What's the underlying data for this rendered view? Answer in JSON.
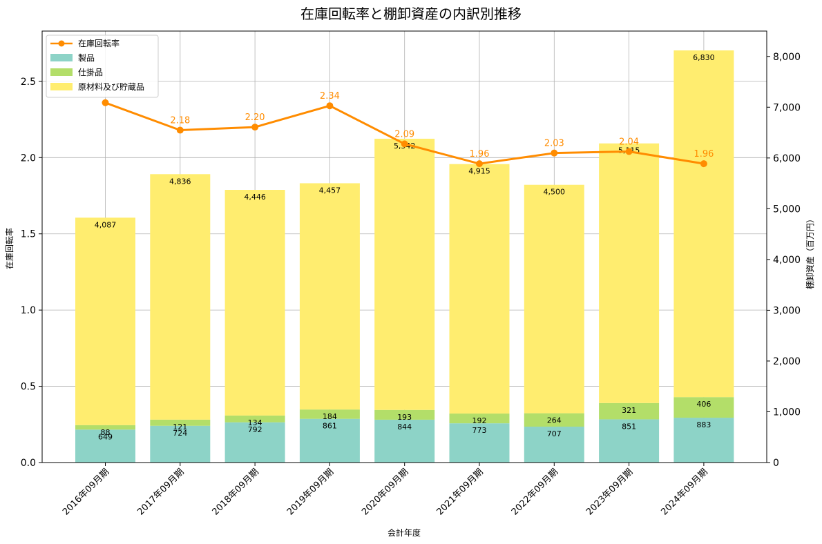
{
  "chart_data": {
    "type": "bar",
    "title": "在庫回転率と棚卸資産の内訳別推移",
    "xlabel": "会計年度",
    "ylabel_left": "在庫回転率",
    "ylabel_right": "棚卸資産（百万円）",
    "categories": [
      "2016年09月期",
      "2017年09月期",
      "2018年09月期",
      "2019年09月期",
      "2020年09月期",
      "2021年09月期",
      "2022年09月期",
      "2023年09月期",
      "2024年09月期"
    ],
    "left_axis": {
      "range": [
        0,
        2.83
      ],
      "ticks": [
        0.0,
        0.5,
        1.0,
        1.5,
        2.0,
        2.5
      ],
      "tick_labels": [
        "0.0",
        "0.5",
        "1.0",
        "1.5",
        "2.0",
        "2.5"
      ]
    },
    "right_axis": {
      "range": [
        0,
        8500
      ],
      "ticks": [
        0,
        1000,
        2000,
        3000,
        4000,
        5000,
        6000,
        7000,
        8000
      ],
      "tick_labels": [
        "0",
        "1,000",
        "2,000",
        "3,000",
        "4,000",
        "5,000",
        "6,000",
        "7,000",
        "8,000"
      ]
    },
    "series": [
      {
        "name": "製品",
        "kind": "bar",
        "axis": "right",
        "color": "#8dd3c7",
        "values": [
          649,
          724,
          792,
          861,
          844,
          773,
          707,
          851,
          883
        ],
        "labels": [
          "649",
          "724",
          "792",
          "861",
          "844",
          "773",
          "707",
          "851",
          "883"
        ]
      },
      {
        "name": "仕掛品",
        "kind": "bar",
        "axis": "right",
        "color": "#b3de69",
        "values": [
          88,
          121,
          134,
          184,
          193,
          192,
          264,
          321,
          406
        ],
        "labels": [
          "88",
          "121",
          "134",
          "184",
          "193",
          "192",
          "264",
          "321",
          "406"
        ]
      },
      {
        "name": "原材料及び貯蔵品",
        "kind": "bar",
        "axis": "right",
        "color": "#ffed6f",
        "values": [
          4087,
          4836,
          4446,
          4457,
          5342,
          4915,
          4500,
          5115,
          6830
        ],
        "labels": [
          "4,087",
          "4,836",
          "4,446",
          "4,457",
          "5,342",
          "4,915",
          "4,500",
          "5,115",
          "6,830"
        ]
      },
      {
        "name": "在庫回転率",
        "kind": "line",
        "axis": "left",
        "color": "#ff8c00",
        "values": [
          2.36,
          2.18,
          2.2,
          2.34,
          2.09,
          1.96,
          2.03,
          2.04,
          1.96
        ],
        "labels": [
          "",
          "2.18",
          "2.20",
          "2.34",
          "2.09",
          "1.96",
          "2.03",
          "2.04",
          "1.96"
        ]
      }
    ],
    "legend_position": "upper-left",
    "grid": true
  }
}
